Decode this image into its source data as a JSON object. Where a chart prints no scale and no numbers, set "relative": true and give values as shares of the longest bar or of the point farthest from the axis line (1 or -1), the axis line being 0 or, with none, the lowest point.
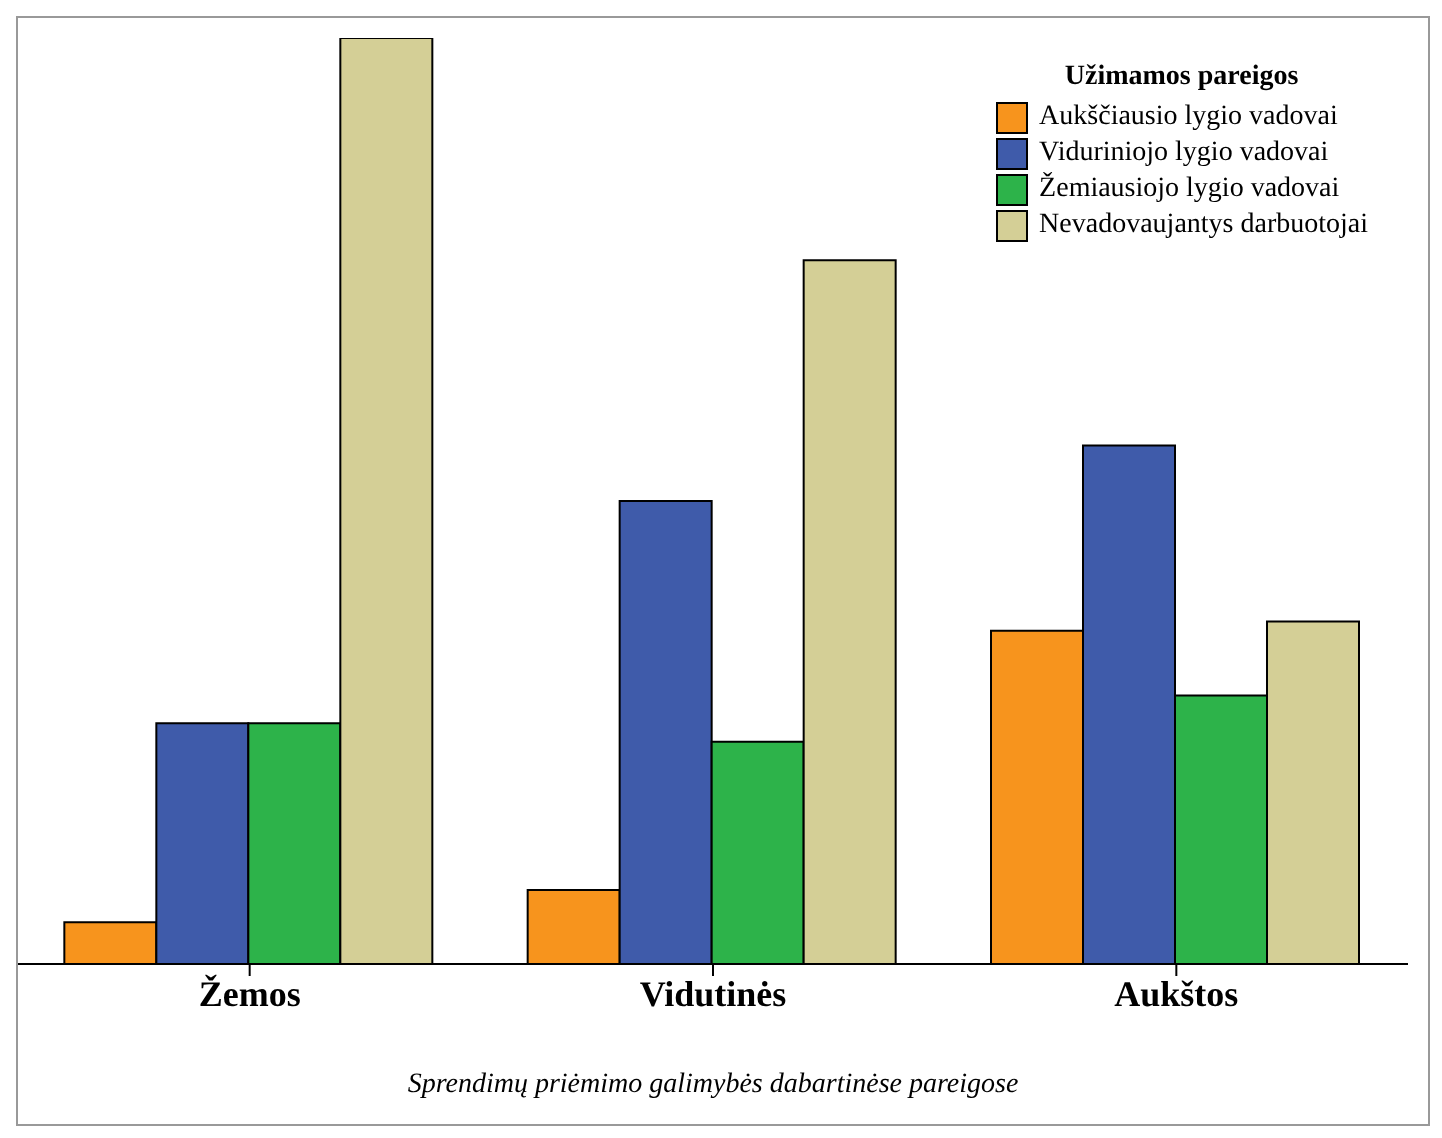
{
  "chart_data": {
    "type": "bar",
    "relative": true,
    "xlabel": "Sprendimų priėmimo galimybės dabartinėse pareigose",
    "legend_title": "Užimamos pareigos",
    "legend": "top right",
    "categories": [
      "Žemos",
      "Vidutinės",
      "Aukštos"
    ],
    "series": [
      {
        "name": "Aukščiausio lygio vadovai",
        "color": "#f7941d",
        "values": [
          0.045,
          0.08,
          0.36
        ]
      },
      {
        "name": "Viduriniojo lygio vadovai",
        "color": "#3f5baa",
        "values": [
          0.26,
          0.5,
          0.56
        ]
      },
      {
        "name": "Žemiausiojo lygio vadovai",
        "color": "#2db34a",
        "values": [
          0.26,
          0.24,
          0.29
        ]
      },
      {
        "name": "Nevadovaujantys darbuotojai",
        "color": "#d4cf96",
        "values": [
          1,
          0.76,
          0.37
        ]
      }
    ]
  }
}
